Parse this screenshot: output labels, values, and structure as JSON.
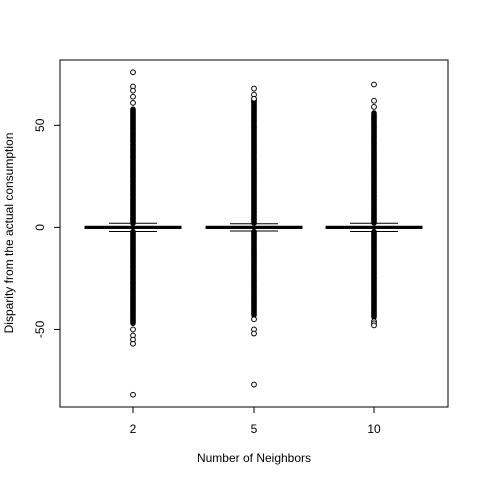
{
  "chart_data": {
    "type": "boxplot",
    "title": "",
    "xlabel": "Number of Neighbors",
    "ylabel": "Disparity from the actual consumption",
    "ylim": [
      -88,
      82
    ],
    "y_ticks": [
      -50,
      0,
      50
    ],
    "y_tick_labels": [
      "-50",
      "0",
      "50"
    ],
    "grid": false,
    "legend": "none",
    "categories": [
      "2",
      "5",
      "10"
    ],
    "boxes": [
      {
        "category": "2",
        "median": 0,
        "q1": -0.5,
        "q3": 0.5,
        "whisker_low": -2,
        "whisker_high": 2,
        "outliers_dense_range": [
          [
            -47,
            -2
          ],
          [
            2,
            58
          ]
        ],
        "outliers_sparse": [
          76,
          69,
          67,
          64,
          61,
          -50,
          -53,
          -55,
          -57,
          -82
        ]
      },
      {
        "category": "5",
        "median": 0,
        "q1": -0.5,
        "q3": 0.5,
        "whisker_low": -1.8,
        "whisker_high": 1.8,
        "outliers_dense_range": [
          [
            -43,
            -2
          ],
          [
            2,
            63
          ]
        ],
        "outliers_sparse": [
          68,
          65,
          63,
          -45,
          -50,
          -52,
          -77
        ]
      },
      {
        "category": "10",
        "median": 0,
        "q1": -0.5,
        "q3": 0.5,
        "whisker_low": -2,
        "whisker_high": 2,
        "outliers_dense_range": [
          [
            -44,
            -2
          ],
          [
            2,
            56
          ]
        ],
        "outliers_sparse": [
          70,
          62,
          59,
          -46,
          -47,
          -48
        ]
      }
    ]
  }
}
